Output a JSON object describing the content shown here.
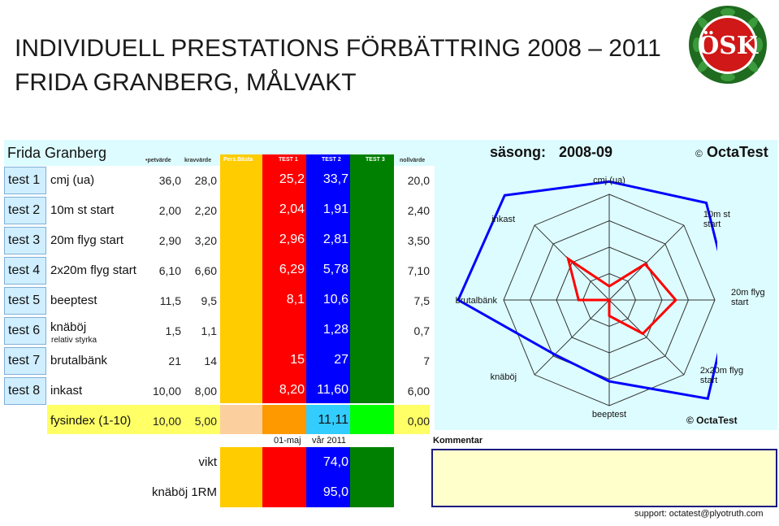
{
  "title": {
    "line1": "INDIVIDUELL PRESTATIONS FÖRBÄTTRING 2008 – 2011",
    "line2": "FRIDA GRANBERG, MÅLVAKT"
  },
  "logo": {
    "text": "ÖSK",
    "icon": "club-crest-icon"
  },
  "sheet": {
    "player_name": "Frida Granberg",
    "season_label": "säsong:",
    "season_value": "2008-09",
    "brand": "OctaTest",
    "brand_symbol": "©",
    "headers": {
      "target": "•petvärde",
      "requirement": "kravvärde",
      "pers_best": "Pers.Bästa",
      "test1": "TEST 1",
      "test2": "TEST 2",
      "test3": "TEST 3",
      "zero": "nollvärde"
    },
    "rows": [
      {
        "test": "test 1",
        "label": "cmj (ua)",
        "sublabel": "",
        "target": "36,0",
        "req": "28,0",
        "t1": "25,2",
        "t2": "33,7",
        "zero": "20,0"
      },
      {
        "test": "test 2",
        "label": "10m st start",
        "sublabel": "",
        "target": "2,00",
        "req": "2,20",
        "t1": "2,04",
        "t2": "1,91",
        "zero": "2,40"
      },
      {
        "test": "test 3",
        "label": "20m flyg start",
        "sublabel": "",
        "target": "2,90",
        "req": "3,20",
        "t1": "2,96",
        "t2": "2,81",
        "zero": "3,50"
      },
      {
        "test": "test 4",
        "label": "2x20m flyg start",
        "sublabel": "",
        "target": "6,10",
        "req": "6,60",
        "t1": "6,29",
        "t2": "5,78",
        "zero": "7,10"
      },
      {
        "test": "test 5",
        "label": "beeptest",
        "sublabel": "",
        "target": "11,5",
        "req": "9,5",
        "t1": "8,1",
        "t2": "10,6",
        "zero": "7,5"
      },
      {
        "test": "test 6",
        "label": "knäböj",
        "sublabel": "relativ styrka",
        "target": "1,5",
        "req": "1,1",
        "t1": "",
        "t2": "1,28",
        "zero": "0,7"
      },
      {
        "test": "test 7",
        "label": "brutalbänk",
        "sublabel": "",
        "target": "21",
        "req": "14",
        "t1": "15",
        "t2": "27",
        "zero": "7"
      },
      {
        "test": "test 8",
        "label": "inkast",
        "sublabel": "",
        "target": "10,00",
        "req": "8,00",
        "t1": "8,20",
        "t2": "11,60",
        "zero": "6,00"
      }
    ],
    "fysindex": {
      "label": "fysindex (1-10)",
      "target": "10,00",
      "req": "5,00",
      "t2": "11,11",
      "zero": "0,00"
    },
    "date_label": "01-maj",
    "date_value": "vår 2011",
    "extra_rows": [
      {
        "label": "vikt",
        "t2": "74,0"
      },
      {
        "label": "knäböj 1RM",
        "t2": "95,0"
      }
    ],
    "comment_label": "Kommentar",
    "support": "support: octatest@plyotruth.com"
  },
  "chart_data": {
    "type": "radar",
    "axes": [
      "cmj (ua)",
      "10m st start",
      "20m flyg start",
      "2x20m flyg start",
      "beeptest",
      "knäböj",
      "brutalbänk",
      "inkast"
    ],
    "axis_labels_display": [
      "cmj (ua)",
      "10m st\nstart",
      "20m flyg\nstart",
      "2x20m flyg\nstart",
      "beeptest",
      "knäböj",
      "brutalbänk",
      "inkast"
    ],
    "rings": 4,
    "series": [
      {
        "name": "TEST 1",
        "color": "#ff0000",
        "values": [
          0.13,
          0.48,
          0.63,
          0.45,
          0.15,
          0.0,
          0.29,
          0.55
        ]
      },
      {
        "name": "TEST 2",
        "color": "#0000ff",
        "values": [
          1.12,
          1.3,
          1.15,
          1.32,
          0.77,
          0.73,
          1.43,
          1.4
        ]
      }
    ],
    "watermark": "© OctaTest",
    "grid_color": "#333333",
    "background": "#ddfcff"
  },
  "colors": {
    "pers_best": "#ffcc00",
    "test1": "#ff0000",
    "test2": "#0000ff",
    "test3": "#008000",
    "fys_pers": "#fccf9f",
    "fys_t1": "#ff9900",
    "fys_t2": "#33ccff",
    "fys_t3": "#00ff00",
    "yellow_row": "#ffff66",
    "cyan_bg": "#ddfcff"
  }
}
